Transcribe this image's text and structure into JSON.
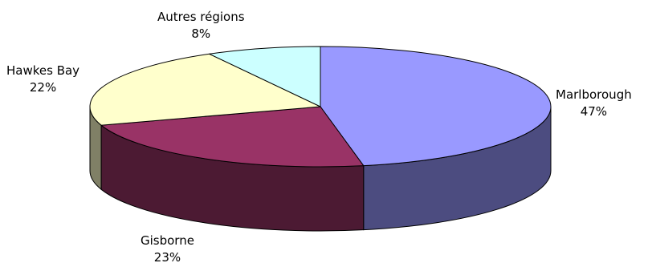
{
  "chart_data": {
    "type": "pie",
    "style": "3d",
    "slices": [
      {
        "label": "Marlborough",
        "value": 47,
        "value_label": "47%",
        "color": "#9999ff",
        "side_color": "#4c4c80"
      },
      {
        "label": "Gisborne",
        "value": 23,
        "value_label": "23%",
        "color": "#993366",
        "side_color": "#4c1a33"
      },
      {
        "label": "Hawkes Bay",
        "value": 22,
        "value_label": "22%",
        "color": "#ffffcc",
        "side_color": "#808066"
      },
      {
        "label": "Autres régions",
        "value": 8,
        "value_label": "8%",
        "color": "#ccffff",
        "side_color": "#668080"
      }
    ],
    "legend": "none"
  }
}
